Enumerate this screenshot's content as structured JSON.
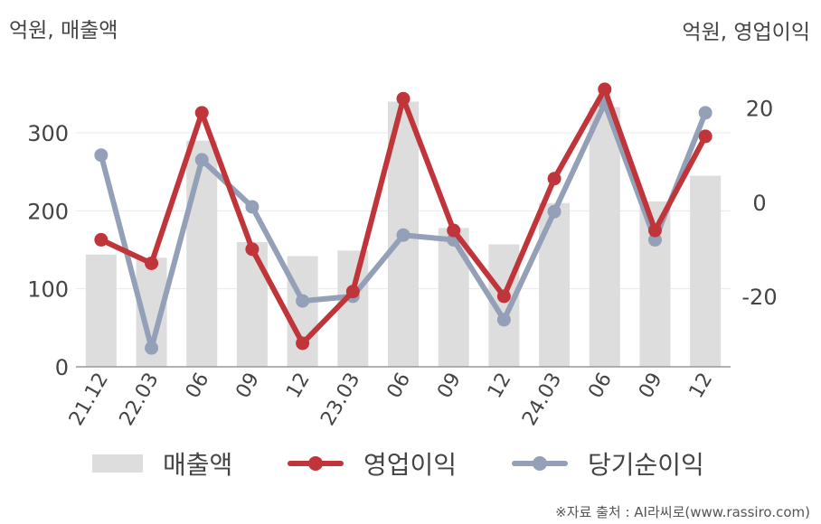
{
  "units": {
    "left": "억원, 매출액",
    "right": "억원, 영업이익"
  },
  "legend": {
    "revenue": "매출액",
    "operating": "영업이익",
    "net": "당기순이익"
  },
  "source": "※자료 출처 : AI라씨로(www.rassiro.com)",
  "colors": {
    "bar": "#dddddd",
    "operating": "#c0353a",
    "net": "#94a0b8",
    "axis": "#999999",
    "grid": "#e8e8e8",
    "text": "#444444"
  },
  "chart_data": {
    "type": "bar",
    "categories": [
      "21.12",
      "22.03",
      "06",
      "09",
      "12",
      "23.03",
      "06",
      "09",
      "12",
      "24.03",
      "06",
      "09",
      "12"
    ],
    "ylim_left": [
      0,
      380
    ],
    "yticks_left": [
      0,
      100,
      200,
      300
    ],
    "ylim_right": [
      -35,
      28
    ],
    "yticks_right": [
      -20,
      0,
      20
    ],
    "series": [
      {
        "name": "매출액",
        "type": "bar",
        "axis": "left",
        "values": [
          144,
          140,
          290,
          160,
          142,
          149,
          340,
          178,
          157,
          210,
          333,
          212,
          245
        ]
      },
      {
        "name": "영업이익",
        "type": "line",
        "axis": "right",
        "values": [
          -8,
          -13,
          19,
          -10,
          -30,
          -19,
          22,
          -6,
          -20,
          5,
          24,
          -6,
          14
        ]
      },
      {
        "name": "당기순이익",
        "type": "line",
        "axis": "right",
        "values": [
          10,
          -31,
          9,
          -1,
          -21,
          -20,
          -7,
          -8,
          -25,
          -2,
          21,
          -8,
          19
        ]
      }
    ]
  }
}
